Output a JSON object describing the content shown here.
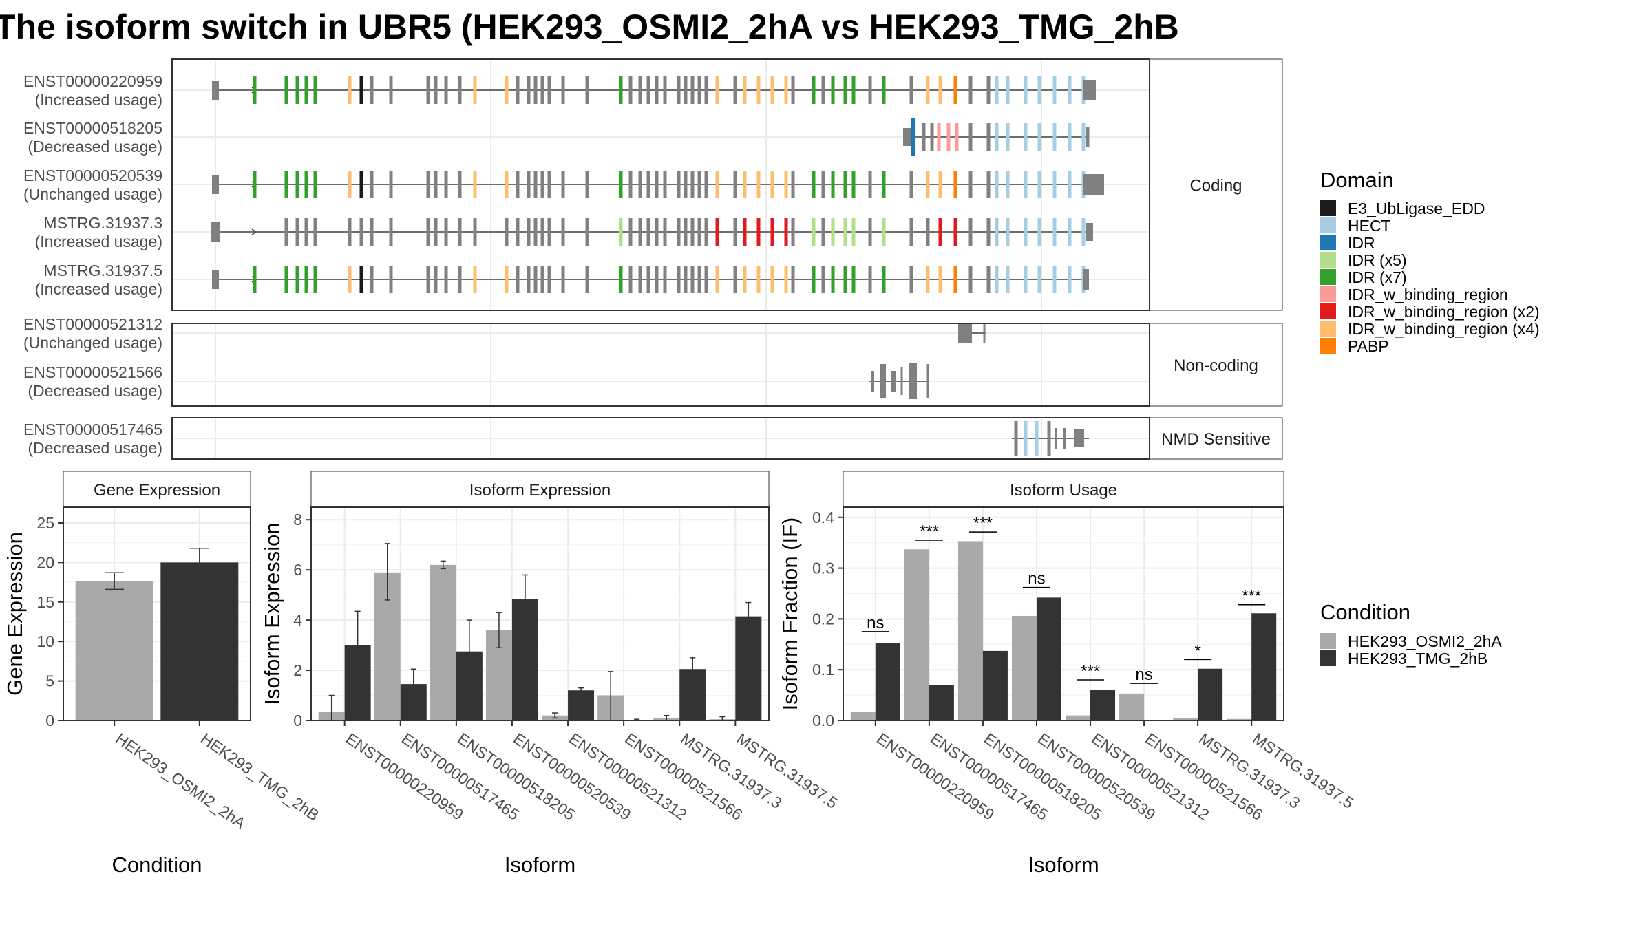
{
  "title": "The isoform switch in UBR5 (HEK293_OSMI2_2hA vs HEK293_TMG_2hB",
  "structure": {
    "groups": [
      {
        "label": "Coding",
        "transcripts": [
          {
            "id": "ENST00000220959",
            "usage": "(Increased usage)"
          },
          {
            "id": "ENST00000518205",
            "usage": "(Decreased usage)"
          },
          {
            "id": "ENST00000520539",
            "usage": "(Unchanged usage)"
          },
          {
            "id": "MSTRG.31937.3",
            "usage": "(Increased usage)"
          },
          {
            "id": "MSTRG.31937.5",
            "usage": "(Increased usage)"
          }
        ]
      },
      {
        "label": "Non-coding",
        "transcripts": [
          {
            "id": "ENST00000521312",
            "usage": "(Unchanged usage)"
          },
          {
            "id": "ENST00000521566",
            "usage": "(Decreased usage)"
          }
        ]
      },
      {
        "label": "NMD Sensitive",
        "transcripts": [
          {
            "id": "ENST00000517465",
            "usage": "(Decreased usage)"
          }
        ]
      }
    ]
  },
  "domain_legend": {
    "title": "Domain",
    "entries": [
      {
        "label": "E3_UbLigase_EDD",
        "color": "#1a1a1a"
      },
      {
        "label": "HECT",
        "color": "#a6cee3"
      },
      {
        "label": "IDR",
        "color": "#1f78b4"
      },
      {
        "label": "IDR (x5)",
        "color": "#b2df8a"
      },
      {
        "label": "IDR (x7)",
        "color": "#33a02c"
      },
      {
        "label": "IDR_w_binding_region",
        "color": "#fb9a99"
      },
      {
        "label": "IDR_w_binding_region (x2)",
        "color": "#e31a1c"
      },
      {
        "label": "IDR_w_binding_region (x4)",
        "color": "#fdbf6f"
      },
      {
        "label": "PABP",
        "color": "#ff7f00"
      }
    ]
  },
  "condition_legend": {
    "title": "Condition",
    "entries": [
      {
        "label": "HEK293_OSMI2_2hA",
        "color": "#a9a9a9"
      },
      {
        "label": "HEK293_TMG_2hB",
        "color": "#333333"
      }
    ]
  },
  "chart_data": [
    {
      "type": "bar",
      "panel": "Gene Expression",
      "xlabel": "Condition",
      "ylabel": "Gene Expression",
      "ylim": [
        0,
        27
      ],
      "yticks": [
        0,
        5,
        10,
        15,
        20,
        25
      ],
      "categories": [
        "HEK293_OSMI2_2hA",
        "HEK293_TMG_2hB"
      ],
      "values": [
        17.6,
        20.0
      ],
      "errors": [
        [
          16.6,
          18.7
        ],
        [
          18.3,
          21.8
        ]
      ]
    },
    {
      "type": "bar",
      "panel": "Isoform Expression",
      "xlabel": "Isoform",
      "ylabel": "Isoform Expression",
      "ylim": [
        0,
        8.5
      ],
      "yticks": [
        0,
        2,
        4,
        6,
        8
      ],
      "categories": [
        "ENST00000220959",
        "ENST00000517465",
        "ENST00000518205",
        "ENST00000520539",
        "ENST00000521312",
        "ENST00000521566",
        "MSTRG.31937.3",
        "MSTRG.31937.5"
      ],
      "series": [
        {
          "values": [
            0.35,
            5.9,
            6.2,
            3.6,
            0.2,
            1.0,
            0.08,
            0.05
          ],
          "errors": [
            [
              0,
              1.0
            ],
            [
              4.8,
              7.05
            ],
            [
              6.05,
              6.35
            ],
            [
              2.9,
              4.3
            ],
            [
              0.1,
              0.3
            ],
            [
              0,
              1.95
            ],
            [
              0,
              0.2
            ],
            [
              0,
              0.15
            ]
          ]
        },
        {
          "values": [
            3.0,
            1.45,
            2.75,
            4.85,
            1.2,
            0.02,
            2.05,
            4.15
          ],
          "errors": [
            [
              1.7,
              4.35
            ],
            [
              0.9,
              2.05
            ],
            [
              1.5,
              4.0
            ],
            [
              3.85,
              5.8
            ],
            [
              1.1,
              1.3
            ],
            [
              0,
              0.05
            ],
            [
              1.6,
              2.5
            ],
            [
              3.6,
              4.7
            ]
          ]
        }
      ]
    },
    {
      "type": "bar",
      "panel": "Isoform Usage",
      "xlabel": "Isoform",
      "ylabel": "Isoform Fraction (IF)",
      "ylim": [
        0,
        0.42
      ],
      "yticks": [
        0.0,
        0.1,
        0.2,
        0.3,
        0.4
      ],
      "categories": [
        "ENST00000220959",
        "ENST00000517465",
        "ENST00000518205",
        "ENST00000520539",
        "ENST00000521312",
        "ENST00000521566",
        "MSTRG.31937.3",
        "MSTRG.31937.5"
      ],
      "series": [
        {
          "values": [
            0.017,
            0.337,
            0.353,
            0.206,
            0.01,
            0.053,
            0.004,
            0.003
          ]
        },
        {
          "values": [
            0.153,
            0.07,
            0.137,
            0.242,
            0.06,
            0.0,
            0.102,
            0.211
          ]
        }
      ],
      "significance": [
        "ns",
        "***",
        "***",
        "ns",
        "***",
        "ns",
        "*",
        "***"
      ],
      "sig_positions": [
        0.175,
        0.355,
        0.371,
        0.262,
        0.08,
        0.073,
        0.12,
        0.228
      ]
    }
  ]
}
